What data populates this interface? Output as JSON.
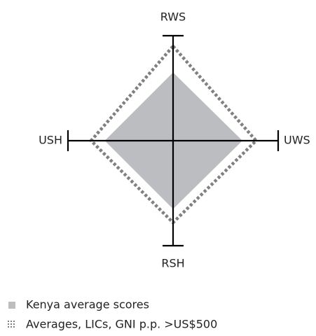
{
  "chart_data": {
    "type": "radar",
    "axes": [
      "RWS",
      "UWS",
      "RSH",
      "USH"
    ],
    "rlim": [
      0,
      1
    ],
    "series": [
      {
        "name": "Kenya average scores",
        "color": "#bcbdc0",
        "style": "filled",
        "values": [
          0.65,
          0.66,
          0.65,
          0.65
        ]
      },
      {
        "name": "Averages, LICs, GNI p.p. >US$500",
        "color": "#808080",
        "style": "dotted",
        "values": [
          0.9,
          0.79,
          0.78,
          0.78
        ]
      }
    ]
  }
}
